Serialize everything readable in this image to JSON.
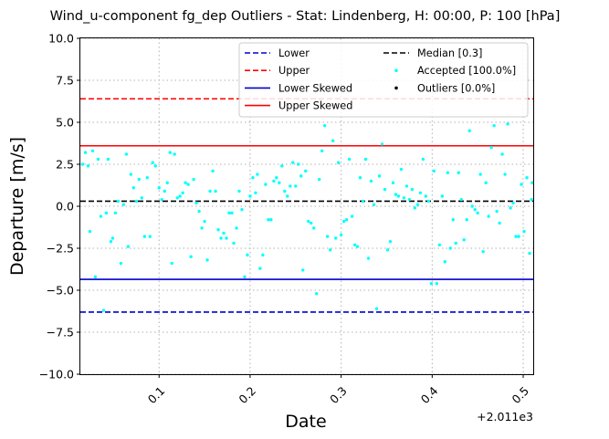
{
  "chart_data": {
    "type": "scatter",
    "title": "Wind_u-component fg_dep Outliers - Stat: Lindenberg, H: 00:00, P: 100 [hPa]",
    "xlabel": "Date",
    "ylabel": "Departure [m/s]",
    "x_offset_label": "+2.011e3",
    "xlim": [
      0.0135,
      0.511
    ],
    "ylim": [
      -10,
      10
    ],
    "x_ticks": [
      0.1,
      0.2,
      0.3,
      0.4,
      0.5
    ],
    "x_tick_labels": [
      "0.1",
      "0.2",
      "0.3",
      "0.4",
      "0.5"
    ],
    "y_ticks": [
      -10,
      -7.5,
      -5,
      -2.5,
      0,
      2.5,
      5,
      7.5,
      10
    ],
    "y_tick_labels": [
      "−10.0",
      "−7.5",
      "−5.0",
      "−2.5",
      "0.0",
      "2.5",
      "5.0",
      "7.5",
      "10.0"
    ],
    "grid": true,
    "legend_position": "top-right",
    "reference_lines": [
      {
        "name": "Lower",
        "y": -6.3,
        "color": "#0000cc",
        "style": "dashed"
      },
      {
        "name": "Upper",
        "y": 6.4,
        "color": "#ff0000",
        "style": "dashed"
      },
      {
        "name": "Lower Skewed",
        "y": -4.35,
        "color": "#0000cc",
        "style": "solid"
      },
      {
        "name": "Upper Skewed",
        "y": 3.6,
        "color": "#ff0000",
        "style": "solid"
      },
      {
        "name": "Median [0.3]",
        "y": 0.3,
        "color": "#000000",
        "style": "dashed"
      }
    ],
    "legend": [
      {
        "label": "Lower",
        "kind": "dashed",
        "color": "#0000cc"
      },
      {
        "label": "Upper",
        "kind": "dashed",
        "color": "#ff0000"
      },
      {
        "label": "Lower Skewed",
        "kind": "solid",
        "color": "#0000cc"
      },
      {
        "label": "Upper Skewed",
        "kind": "solid",
        "color": "#ff0000"
      },
      {
        "label": "Median [0.3]",
        "kind": "dashed",
        "color": "#000000"
      },
      {
        "label": "Accepted [100.0%]",
        "kind": "dot",
        "color": "#00ffff"
      },
      {
        "label": "Outliers [0.0%]",
        "kind": "dot",
        "color": "#000000"
      }
    ],
    "series": [
      {
        "name": "Accepted [100.0%]",
        "color": "#00ffff",
        "points": [
          [
            0.016,
            2.5
          ],
          [
            0.019,
            3.2
          ],
          [
            0.022,
            2.4
          ],
          [
            0.024,
            -1.5
          ],
          [
            0.027,
            3.3
          ],
          [
            0.03,
            -4.2
          ],
          [
            0.033,
            2.8
          ],
          [
            0.036,
            -0.6
          ],
          [
            0.039,
            -6.2
          ],
          [
            0.042,
            -0.4
          ],
          [
            0.044,
            2.8
          ],
          [
            0.047,
            -2.1
          ],
          [
            0.049,
            -1.9
          ],
          [
            0.052,
            -0.4
          ],
          [
            0.055,
            0.3
          ],
          [
            0.058,
            -3.4
          ],
          [
            0.061,
            0.1
          ],
          [
            0.064,
            3.1
          ],
          [
            0.066,
            -2.4
          ],
          [
            0.069,
            1.9
          ],
          [
            0.072,
            1.1
          ],
          [
            0.075,
            0.3
          ],
          [
            0.078,
            1.6
          ],
          [
            0.081,
            0.5
          ],
          [
            0.084,
            -1.8
          ],
          [
            0.087,
            1.7
          ],
          [
            0.09,
            -1.8
          ],
          [
            0.093,
            2.6
          ],
          [
            0.096,
            2.4
          ],
          [
            0.1,
            1.1
          ],
          [
            0.103,
            0.4
          ],
          [
            0.106,
            0.9
          ],
          [
            0.109,
            1.4
          ],
          [
            0.112,
            3.2
          ],
          [
            0.114,
            -3.4
          ],
          [
            0.117,
            3.1
          ],
          [
            0.12,
            0.5
          ],
          [
            0.123,
            0.6
          ],
          [
            0.126,
            0.8
          ],
          [
            0.129,
            1.4
          ],
          [
            0.132,
            1.3
          ],
          [
            0.135,
            -3.0
          ],
          [
            0.138,
            1.6
          ],
          [
            0.141,
            0.2
          ],
          [
            0.144,
            -0.3
          ],
          [
            0.147,
            -1.3
          ],
          [
            0.15,
            -0.9
          ],
          [
            0.153,
            -3.2
          ],
          [
            0.156,
            0.9
          ],
          [
            0.159,
            2.1
          ],
          [
            0.162,
            0.9
          ],
          [
            0.165,
            -1.4
          ],
          [
            0.168,
            -1.9
          ],
          [
            0.171,
            -1.6
          ],
          [
            0.174,
            -1.9
          ],
          [
            0.177,
            -0.4
          ],
          [
            0.18,
            -0.4
          ],
          [
            0.182,
            -2.2
          ],
          [
            0.185,
            -1.3
          ],
          [
            0.188,
            0.9
          ],
          [
            0.191,
            -0.2
          ],
          [
            0.194,
            -4.2
          ],
          [
            0.197,
            -2.9
          ],
          [
            0.2,
            0.6
          ],
          [
            0.203,
            1.7
          ],
          [
            0.206,
            0.8
          ],
          [
            0.208,
            1.9
          ],
          [
            0.211,
            -3.7
          ],
          [
            0.214,
            -2.9
          ],
          [
            0.217,
            1.3
          ],
          [
            0.22,
            -0.8
          ],
          [
            0.223,
            -0.8
          ],
          [
            0.226,
            1.5
          ],
          [
            0.229,
            1.7
          ],
          [
            0.232,
            1.4
          ],
          [
            0.235,
            2.4
          ],
          [
            0.238,
            0.9
          ],
          [
            0.241,
            0.6
          ],
          [
            0.244,
            1.2
          ],
          [
            0.247,
            2.6
          ],
          [
            0.25,
            1.2
          ],
          [
            0.253,
            2.5
          ],
          [
            0.256,
            1.8
          ],
          [
            0.258,
            -3.8
          ],
          [
            0.261,
            2.1
          ],
          [
            0.264,
            -0.9
          ],
          [
            0.267,
            -1.0
          ],
          [
            0.27,
            -1.3
          ],
          [
            0.273,
            -5.2
          ],
          [
            0.276,
            1.6
          ],
          [
            0.279,
            3.3
          ],
          [
            0.282,
            4.8
          ],
          [
            0.285,
            -1.8
          ],
          [
            0.288,
            -2.6
          ],
          [
            0.291,
            3.9
          ],
          [
            0.294,
            -1.9
          ],
          [
            0.297,
            2.6
          ],
          [
            0.3,
            -1.7
          ],
          [
            0.303,
            -0.9
          ],
          [
            0.306,
            -0.8
          ],
          [
            0.309,
            2.8
          ],
          [
            0.312,
            -0.6
          ],
          [
            0.315,
            -2.3
          ],
          [
            0.318,
            -2.4
          ],
          [
            0.321,
            1.7
          ],
          [
            0.324,
            0.3
          ],
          [
            0.327,
            2.8
          ],
          [
            0.33,
            -3.1
          ],
          [
            0.333,
            1.5
          ],
          [
            0.336,
            0.1
          ],
          [
            0.339,
            -6.1
          ],
          [
            0.342,
            1.8
          ],
          [
            0.345,
            3.7
          ],
          [
            0.348,
            1.0
          ],
          [
            0.351,
            -2.6
          ],
          [
            0.354,
            -2.1
          ],
          [
            0.357,
            1.4
          ],
          [
            0.36,
            0.7
          ],
          [
            0.363,
            0.6
          ],
          [
            0.366,
            2.2
          ],
          [
            0.369,
            0.5
          ],
          [
            0.372,
            1.2
          ],
          [
            0.375,
            0.4
          ],
          [
            0.378,
            1.0
          ],
          [
            0.381,
            -0.1
          ],
          [
            0.384,
            0.1
          ],
          [
            0.387,
            0.8
          ],
          [
            0.39,
            2.8
          ],
          [
            0.393,
            0.6
          ],
          [
            0.396,
            0.3
          ],
          [
            0.399,
            -4.6
          ],
          [
            0.402,
            2.1
          ],
          [
            0.405,
            -4.6
          ],
          [
            0.408,
            -2.3
          ],
          [
            0.411,
            0.6
          ],
          [
            0.414,
            -3.3
          ],
          [
            0.417,
            2.0
          ],
          [
            0.42,
            -2.5
          ],
          [
            0.423,
            -0.8
          ],
          [
            0.426,
            -2.2
          ],
          [
            0.429,
            2.0
          ],
          [
            0.432,
            0.4
          ],
          [
            0.435,
            -2.0
          ],
          [
            0.438,
            -0.8
          ],
          [
            0.441,
            4.5
          ],
          [
            0.444,
            0.0
          ],
          [
            0.447,
            -0.2
          ],
          [
            0.45,
            -0.4
          ],
          [
            0.453,
            1.9
          ],
          [
            0.456,
            -2.7
          ],
          [
            0.459,
            1.4
          ],
          [
            0.462,
            -0.6
          ],
          [
            0.465,
            3.5
          ],
          [
            0.468,
            4.8
          ],
          [
            0.471,
            -0.3
          ],
          [
            0.474,
            -1.0
          ],
          [
            0.477,
            3.1
          ],
          [
            0.48,
            1.9
          ],
          [
            0.483,
            4.9
          ],
          [
            0.486,
            -0.1
          ],
          [
            0.489,
            0.2
          ],
          [
            0.492,
            -1.8
          ],
          [
            0.495,
            -1.8
          ],
          [
            0.498,
            1.3
          ],
          [
            0.501,
            -1.5
          ],
          [
            0.504,
            1.7
          ],
          [
            0.507,
            -2.8
          ],
          [
            0.509,
            0.4
          ],
          [
            0.51,
            1.4
          ]
        ]
      },
      {
        "name": "Outliers [0.0%]",
        "color": "#000000",
        "points": []
      }
    ]
  }
}
